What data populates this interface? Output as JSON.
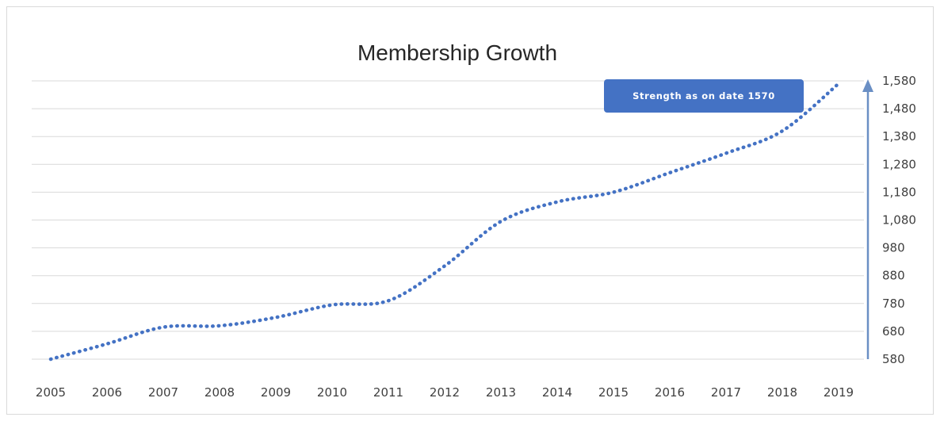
{
  "chart_data": {
    "type": "line",
    "title": "Membership Growth",
    "xlabel": "",
    "ylabel": "",
    "categories": [
      "2005",
      "2006",
      "2007",
      "2008",
      "2009",
      "2010",
      "2011",
      "2012",
      "2013",
      "2014",
      "2015",
      "2016",
      "2017",
      "2018",
      "2019"
    ],
    "series": [
      {
        "values": [
          580,
          635,
          695,
          700,
          730,
          775,
          790,
          915,
          1075,
          1145,
          1180,
          1250,
          1320,
          1400,
          1570
        ]
      }
    ],
    "ylim": [
      580,
      1580
    ],
    "yticks": [
      "1,580",
      "1,480",
      "1,380",
      "1,280",
      "1,180",
      "1,080",
      "980",
      "880",
      "780",
      "680",
      "580"
    ],
    "ytick_values": [
      1580,
      1480,
      1380,
      1280,
      1180,
      1080,
      980,
      880,
      780,
      680,
      580
    ],
    "y_axis_position": "right",
    "grid": true,
    "legend": "none",
    "line_style": "dotted",
    "colors": {
      "series": "#4472c4",
      "axis_arrow": "#6a8fc4",
      "grid": "#d9d9d9",
      "callout_fill": "#4472c4"
    },
    "annotations": [
      {
        "text": "Strength as on date 1570"
      }
    ]
  }
}
